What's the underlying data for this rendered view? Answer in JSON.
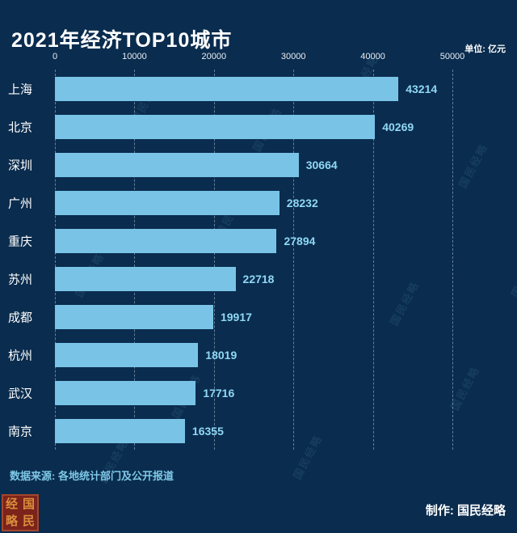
{
  "header": {
    "title": "2021年经济TOP10城市",
    "unit_label": "单位: 亿元"
  },
  "chart_data": {
    "type": "bar",
    "orientation": "horizontal",
    "title": "2021年经济TOP10城市",
    "unit": "亿元",
    "categories": [
      "上海",
      "北京",
      "深圳",
      "广州",
      "重庆",
      "苏州",
      "成都",
      "杭州",
      "武汉",
      "南京"
    ],
    "values": [
      43214,
      40269,
      30664,
      28232,
      27894,
      22718,
      19917,
      18019,
      17716,
      16355
    ],
    "xticks": [
      0,
      10000,
      20000,
      30000,
      40000,
      50000
    ],
    "xlim": [
      0,
      50000
    ],
    "grid": "dashed-vertical",
    "legend": "none",
    "bar_color": "#79c4e6",
    "value_label_color": "#8fd8f5",
    "background_color": "#0a2c4e"
  },
  "footer": {
    "source": "数据来源: 各地统计部门及公开报道",
    "credit": "制作: 国民经略"
  },
  "watermark": {
    "text": "国民经略"
  },
  "seal": {
    "chars": [
      "经",
      "国",
      "略",
      "民"
    ]
  }
}
